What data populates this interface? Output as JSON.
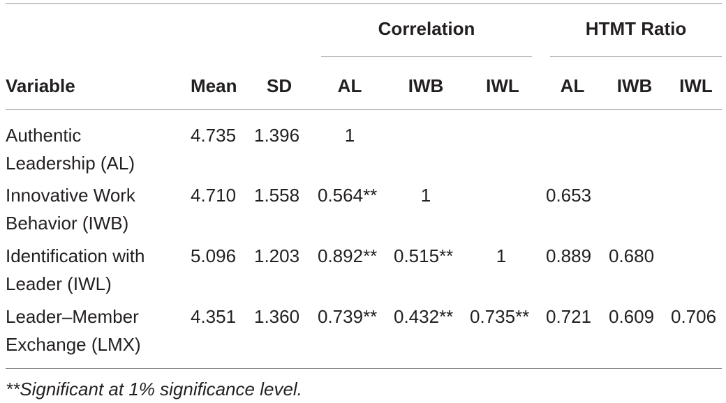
{
  "table": {
    "group_headers": [
      "Correlation",
      "HTMT Ratio"
    ],
    "columns": [
      "Variable",
      "Mean",
      "SD",
      "AL",
      "IWB",
      "IWL",
      "AL",
      "IWB",
      "IWL"
    ],
    "rows": [
      {
        "variable": [
          "Authentic",
          "Leadership (AL)"
        ],
        "mean": "4.735",
        "sd": "1.396",
        "corr": [
          "1",
          "",
          ""
        ],
        "htmt": [
          "",
          "",
          ""
        ]
      },
      {
        "variable": [
          "Innovative Work",
          "Behavior (IWB)"
        ],
        "mean": "4.710",
        "sd": "1.558",
        "corr": [
          "0.564**",
          "1",
          ""
        ],
        "htmt": [
          "0.653",
          "",
          ""
        ]
      },
      {
        "variable": [
          "Identification with",
          "Leader (IWL)"
        ],
        "mean": "5.096",
        "sd": "1.203",
        "corr": [
          "0.892**",
          "0.515**",
          "1"
        ],
        "htmt": [
          "0.889",
          "0.680",
          ""
        ]
      },
      {
        "variable": [
          "Leader–Member",
          "Exchange (LMX)"
        ],
        "mean": "4.351",
        "sd": "1.360",
        "corr": [
          "0.739**",
          "0.432**",
          "0.735**"
        ],
        "htmt": [
          "0.721",
          "0.609",
          "0.706"
        ]
      }
    ],
    "footnote": "**Significant at 1% significance level."
  }
}
